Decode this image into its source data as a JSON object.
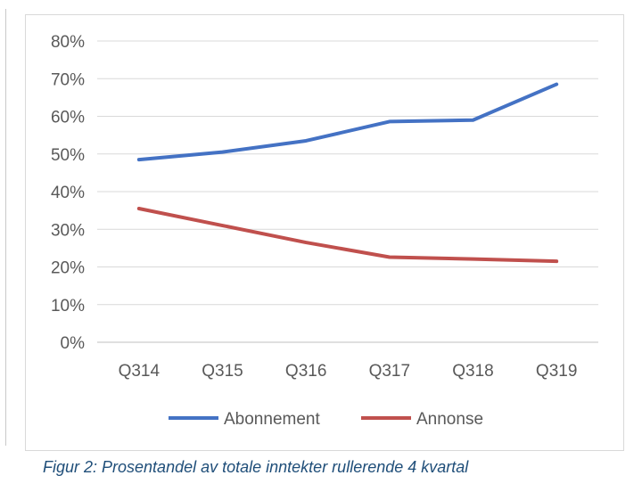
{
  "chart_data": {
    "type": "line",
    "categories": [
      "Q314",
      "Q315",
      "Q316",
      "Q317",
      "Q318",
      "Q319"
    ],
    "series": [
      {
        "name": "Abonnement",
        "values": [
          48.5,
          50.5,
          53.5,
          58.6,
          59.0,
          68.5
        ],
        "color": "#4472c4"
      },
      {
        "name": "Annonse",
        "values": [
          35.5,
          31.0,
          26.5,
          22.6,
          22.1,
          21.5
        ],
        "color": "#c0504d"
      }
    ],
    "ylim": [
      0,
      80
    ],
    "yticks": [
      "0%",
      "10%",
      "20%",
      "30%",
      "40%",
      "50%",
      "60%",
      "70%",
      "80%"
    ],
    "grid": true,
    "legend": "bottom"
  },
  "caption": "Figur 2: Prosentandel av totale inntekter rullerende 4 kvartal"
}
